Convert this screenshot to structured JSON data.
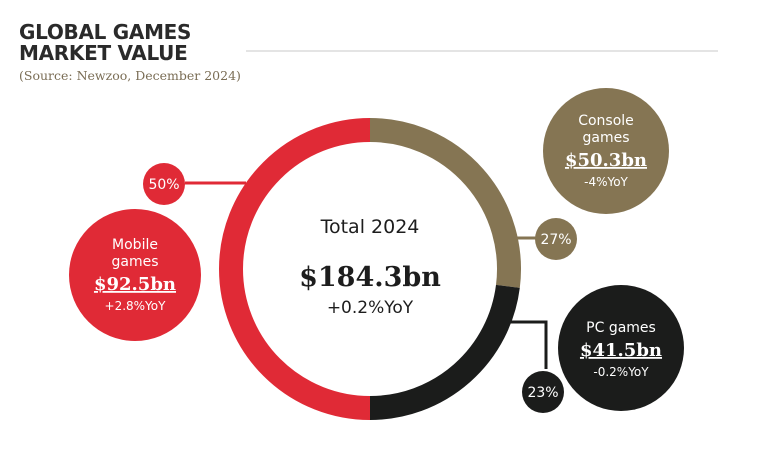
{
  "header": {
    "title_line1": "GLOBAL GAMES",
    "title_line2": "MARKET VALUE",
    "source": "(Source: Newzoo, December 2024)"
  },
  "colors": {
    "mobile": "#e02a36",
    "console": "#857553",
    "pc": "#1b1c1b",
    "rule": "#c9c9c9",
    "text_dark": "#1d1d1d"
  },
  "center": {
    "label": "Total 2024",
    "value": "$184.3bn",
    "change": "+0.2%YoY"
  },
  "chart_data": {
    "type": "pie",
    "title": "GLOBAL GAMES MARKET VALUE",
    "subtitle": "(Source: Newzoo, December 2024)",
    "total": {
      "label": "Total 2024",
      "value": 184.3,
      "value_text": "$184.3bn",
      "change": "+0.2%YoY"
    },
    "segments": [
      {
        "key": "console",
        "line1": "Console",
        "line2": "games",
        "value": 50.3,
        "value_text": "$50.3bn",
        "change": "-4%YoY",
        "share": 27,
        "share_text": "27%"
      },
      {
        "key": "pc",
        "line1": "PC games",
        "line2": "",
        "value": 41.5,
        "value_text": "$41.5bn",
        "change": "-0.2%YoY",
        "share": 23,
        "share_text": "23%"
      },
      {
        "key": "mobile",
        "line1": "Mobile",
        "line2": "games",
        "value": 92.5,
        "value_text": "$92.5bn",
        "change": "+2.8%YoY",
        "share": 50,
        "share_text": "50%"
      }
    ]
  }
}
